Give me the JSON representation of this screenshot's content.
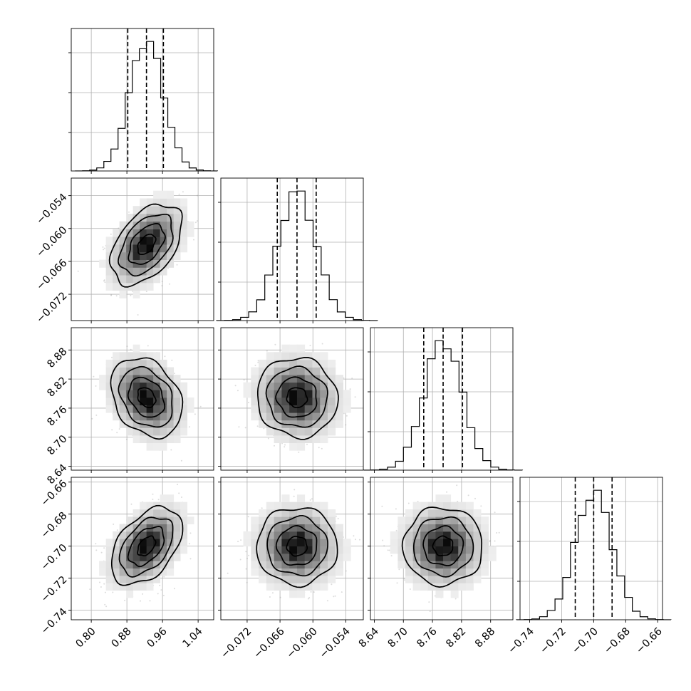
{
  "chart_data": {
    "type": "corner",
    "title": "",
    "parameters": [
      {
        "name": "",
        "ticks": [
          "0.80",
          "0.88",
          "0.96",
          "1.04"
        ],
        "range": [
          0.755,
          1.075
        ],
        "median": 0.924,
        "q16": 0.882,
        "q84": 0.962,
        "sigma": 0.038
      },
      {
        "name": "",
        "ticks": [
          "−0.072",
          "−0.066",
          "−0.060",
          "−0.054"
        ],
        "range": [
          -0.0768,
          -0.0508
        ],
        "median": -0.0629,
        "q16": -0.0665,
        "q84": -0.0594,
        "sigma": 0.0035
      },
      {
        "name": "",
        "ticks": [
          "8.64",
          "8.70",
          "8.76",
          "8.82",
          "8.88"
        ],
        "range": [
          8.632,
          8.926
        ],
        "median": 8.782,
        "q16": 8.742,
        "q84": 8.822,
        "sigma": 0.039
      },
      {
        "name": "",
        "ticks": [
          "−0.74",
          "−0.72",
          "−0.70",
          "−0.68",
          "−0.66"
        ],
        "range": [
          -0.746,
          -0.657
        ],
        "median": -0.7,
        "q16": -0.7115,
        "q84": -0.6885,
        "sigma": 0.0115
      }
    ],
    "correlations": [
      {
        "pair": [
          0,
          1
        ],
        "rho": 0.45
      },
      {
        "pair": [
          0,
          2
        ],
        "rho": -0.28
      },
      {
        "pair": [
          0,
          3
        ],
        "rho": 0.45
      },
      {
        "pair": [
          1,
          2
        ],
        "rho": -0.05
      },
      {
        "pair": [
          1,
          3
        ],
        "rho": 0.0
      },
      {
        "pair": [
          2,
          3
        ],
        "rho": 0.0
      }
    ],
    "contour_levels_sigma": [
      0.5,
      1.0,
      1.5,
      2.0
    ],
    "quantiles": [
      0.16,
      0.5,
      0.84
    ],
    "grid": true,
    "histogram_bins": 20
  }
}
